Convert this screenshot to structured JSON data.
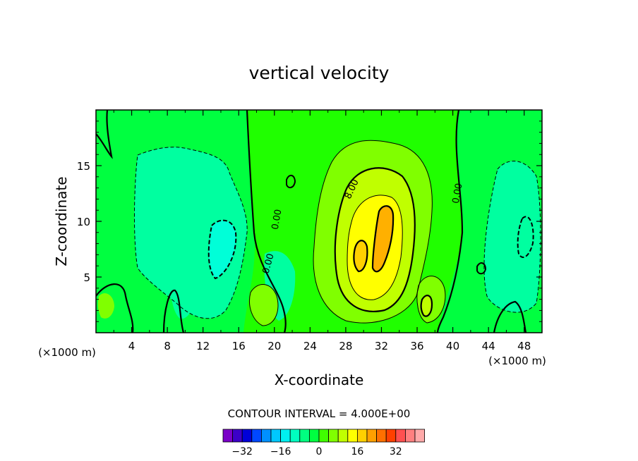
{
  "chart_data": {
    "type": "heatmap",
    "title": "vertical velocity",
    "xlabel": "X-coordinate",
    "ylabel": "Z-coordinate",
    "x_units_label": "(×1000 m)",
    "x_units_label_right": "(×1000 m)",
    "xlim": [
      0,
      50
    ],
    "ylim": [
      0,
      20
    ],
    "x_ticks": [
      "4",
      "8",
      "12",
      "16",
      "20",
      "24",
      "28",
      "32",
      "36",
      "40",
      "44",
      "48"
    ],
    "y_ticks": [
      "5",
      "10",
      "15"
    ],
    "contour_labels": [
      "0.00",
      "0.00",
      "8.00",
      "0.00"
    ],
    "contour_interval_text": "CONTOUR INTERVAL = 4.000E+00",
    "colorbar": {
      "colors": [
        "#7a00c8",
        "#3c00c8",
        "#0000d8",
        "#0048ff",
        "#0090ff",
        "#00c8ff",
        "#00f0f0",
        "#00ffc0",
        "#00ff80",
        "#00ff40",
        "#40ff00",
        "#80ff00",
        "#c0ff00",
        "#ffff00",
        "#ffd000",
        "#ffa000",
        "#ff7000",
        "#ff4000",
        "#ff5050",
        "#ff8080",
        "#ffaaaa"
      ],
      "tick_labels": [
        "-32",
        "-16",
        "0",
        "16",
        "32"
      ]
    },
    "features": [
      {
        "kind": "updraft-core",
        "x": 31.5,
        "z": 9,
        "max": 24
      },
      {
        "kind": "updraft-core",
        "x": 29.5,
        "z": 7,
        "max": 20
      },
      {
        "kind": "downdraft",
        "x": 14.5,
        "z": 8,
        "min": -8
      },
      {
        "kind": "updraft",
        "x": 37,
        "z": 2.5,
        "max": 12
      }
    ]
  }
}
